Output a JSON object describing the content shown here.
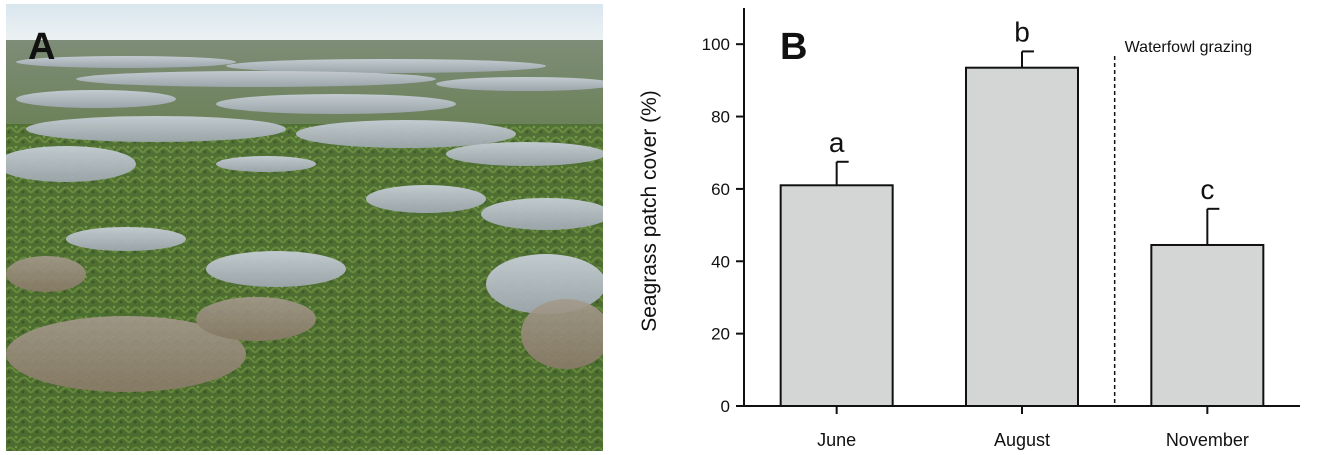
{
  "figure": {
    "panel_a_letter": "A",
    "panel_b_letter": "B",
    "photo_icon": "seagrass-mudflat-photo"
  },
  "chart_data": {
    "type": "bar",
    "categories": [
      "June",
      "August",
      "November"
    ],
    "values": [
      61,
      93.5,
      44.5
    ],
    "errors": [
      6.5,
      4.5,
      10
    ],
    "significance_letters": [
      "a",
      "b",
      "c"
    ],
    "ylabel": "Seagrass patch cover (%)",
    "xlabel": "",
    "ylim": [
      0,
      110
    ],
    "yticks": [
      0,
      20,
      40,
      60,
      80,
      100
    ],
    "annotation": "Waterfowl grazing",
    "grid": false,
    "colors": {
      "bar_fill": "#d3d6d4",
      "bar_stroke": "#111111"
    }
  }
}
